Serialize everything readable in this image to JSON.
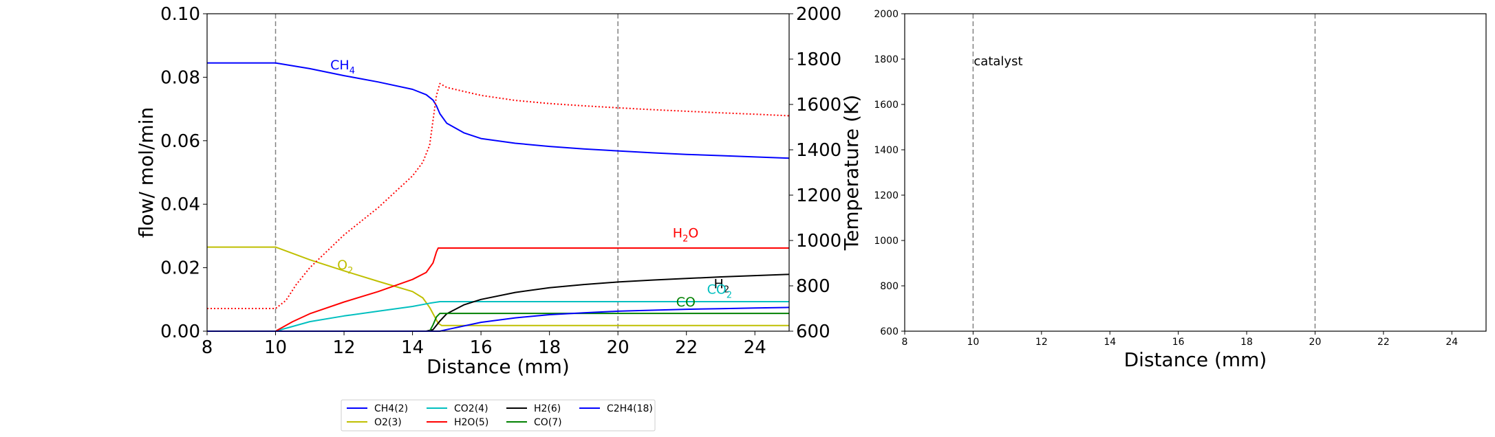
{
  "chart_data": [
    {
      "type": "line",
      "xlabel": "Distance (mm)",
      "ylabel": "flow/ mol/min",
      "y2label": "Temperature (K)",
      "xlim": [
        8,
        25
      ],
      "ylim": [
        0,
        0.1
      ],
      "y2lim": [
        600,
        2000
      ],
      "xticks": [
        "8",
        "10",
        "12",
        "14",
        "16",
        "18",
        "20",
        "22",
        "24"
      ],
      "yticks": [
        "0.00",
        "0.02",
        "0.04",
        "0.06",
        "0.08",
        "0.10"
      ],
      "y2ticks": [
        "600",
        "800",
        "1000",
        "1200",
        "1400",
        "1600",
        "1800",
        "2000"
      ],
      "grid": false,
      "vlines": [
        10,
        20
      ],
      "legend": {
        "placement": "below",
        "ncol": 4,
        "entries": [
          "CH4(2)",
          "O2(3)",
          "CO2(4)",
          "H2O(5)",
          "H2(6)",
          "CO(7)",
          "C2H4(18)"
        ]
      },
      "annotations": [
        {
          "base": "CH",
          "sub": "4",
          "x": 11.6,
          "y": 0.0825,
          "color": "#0000ff"
        },
        {
          "base": "O",
          "sub": "2",
          "x": 11.8,
          "y": 0.0195,
          "color": "#bfbf00"
        },
        {
          "base": "H",
          "sub": "2",
          "tail": "O",
          "x": 21.6,
          "y": 0.0295,
          "color": "#ff0000"
        },
        {
          "base": "H",
          "sub": "2",
          "x": 22.8,
          "y": 0.0135,
          "color": "#000000"
        },
        {
          "base": "CO",
          "sub": "2",
          "x": 22.6,
          "y": 0.0118,
          "color": "#00bfbf"
        },
        {
          "base": "CO",
          "sub": "",
          "x": 21.7,
          "y": 0.0078,
          "color": "#008000"
        }
      ],
      "series": [
        {
          "name": "CH4(2)",
          "color": "#0000ff",
          "style": "solid",
          "axis": "left",
          "x": [
            8,
            10,
            11,
            12,
            13,
            14,
            14.4,
            14.6,
            14.7,
            14.8,
            15,
            15.5,
            16,
            17,
            18,
            19,
            20,
            21,
            22,
            23,
            24,
            25
          ],
          "y": [
            0.0845,
            0.0845,
            0.0827,
            0.0805,
            0.0785,
            0.0762,
            0.0745,
            0.0728,
            0.071,
            0.0685,
            0.0655,
            0.0625,
            0.0607,
            0.0592,
            0.0582,
            0.0574,
            0.0568,
            0.0562,
            0.0557,
            0.0553,
            0.0549,
            0.0545
          ]
        },
        {
          "name": "O2(3)",
          "color": "#bfbf00",
          "style": "solid",
          "axis": "left",
          "x": [
            8,
            10,
            11,
            12,
            13,
            14,
            14.3,
            14.5,
            14.65,
            14.75,
            14.85,
            25
          ],
          "y": [
            0.0265,
            0.0265,
            0.0225,
            0.019,
            0.0157,
            0.0125,
            0.0105,
            0.0075,
            0.0045,
            0.0025,
            0.0018,
            0.0018
          ]
        },
        {
          "name": "CO2(4)",
          "color": "#00bfbf",
          "style": "solid",
          "axis": "left",
          "x": [
            8,
            10,
            11,
            12,
            13,
            14,
            14.5,
            14.8,
            25
          ],
          "y": [
            0,
            0,
            0.003,
            0.0048,
            0.0063,
            0.0078,
            0.0088,
            0.0093,
            0.0093
          ]
        },
        {
          "name": "H2O(5)",
          "color": "#ff0000",
          "style": "solid",
          "axis": "left",
          "x": [
            8,
            10,
            10.5,
            11,
            12,
            13,
            14,
            14.4,
            14.6,
            14.7,
            14.75,
            14.8,
            25
          ],
          "y": [
            0,
            0,
            0.003,
            0.0055,
            0.0092,
            0.0125,
            0.0163,
            0.0185,
            0.0215,
            0.025,
            0.0262,
            0.0262,
            0.0262
          ]
        },
        {
          "name": "H2(6)",
          "color": "#000000",
          "style": "solid",
          "axis": "left",
          "x": [
            8,
            14.4,
            14.6,
            14.8,
            15,
            15.5,
            16,
            17,
            18,
            19,
            20,
            21,
            22,
            23,
            24,
            25
          ],
          "y": [
            0,
            0,
            0.0005,
            0.0032,
            0.0055,
            0.0083,
            0.01,
            0.0122,
            0.0137,
            0.0147,
            0.0155,
            0.0161,
            0.0166,
            0.0171,
            0.0175,
            0.0179
          ]
        },
        {
          "name": "CO(7)",
          "color": "#008000",
          "style": "solid",
          "axis": "left",
          "x": [
            8,
            14.5,
            14.6,
            14.7,
            14.8,
            25
          ],
          "y": [
            0,
            0,
            0.002,
            0.0045,
            0.0056,
            0.0056
          ]
        },
        {
          "name": "C2H4(18)",
          "color": "#0000ff",
          "style": "solid",
          "axis": "left",
          "x": [
            8,
            14.8,
            15,
            16,
            17,
            18,
            19,
            20,
            21,
            22,
            23,
            24,
            25
          ],
          "y": [
            0,
            0,
            0.0005,
            0.0028,
            0.0042,
            0.0052,
            0.0058,
            0.0063,
            0.0066,
            0.0069,
            0.0071,
            0.0073,
            0.0075
          ]
        },
        {
          "name": "Temperature",
          "color": "#ff0000",
          "style": "dotted",
          "axis": "right",
          "x": [
            8,
            10,
            10.3,
            10.6,
            11,
            12,
            13,
            14,
            14.3,
            14.5,
            14.6,
            14.7,
            14.8,
            15,
            16,
            17,
            18,
            19,
            20,
            21,
            22,
            23,
            24,
            25
          ],
          "y": [
            700,
            700,
            735,
            805,
            880,
            1025,
            1145,
            1285,
            1345,
            1420,
            1530,
            1640,
            1692,
            1675,
            1640,
            1618,
            1604,
            1594,
            1585,
            1577,
            1570,
            1563,
            1557,
            1550
          ]
        }
      ]
    },
    {
      "type": "line",
      "xlabel": "Distance (mm)",
      "ylabel": "",
      "xlim": [
        8,
        25
      ],
      "ylim": [
        600,
        2000
      ],
      "xticks": [
        "8",
        "10",
        "12",
        "14",
        "16",
        "18",
        "20",
        "22",
        "24"
      ],
      "yticks": [
        "600",
        "800",
        "1000",
        "1200",
        "1400",
        "1600",
        "1800",
        "2000"
      ],
      "grid": false,
      "vlines": [
        10,
        20
      ],
      "annotations": [
        {
          "text": "catalyst",
          "x": 10,
          "y": 1800
        }
      ],
      "series": []
    }
  ]
}
